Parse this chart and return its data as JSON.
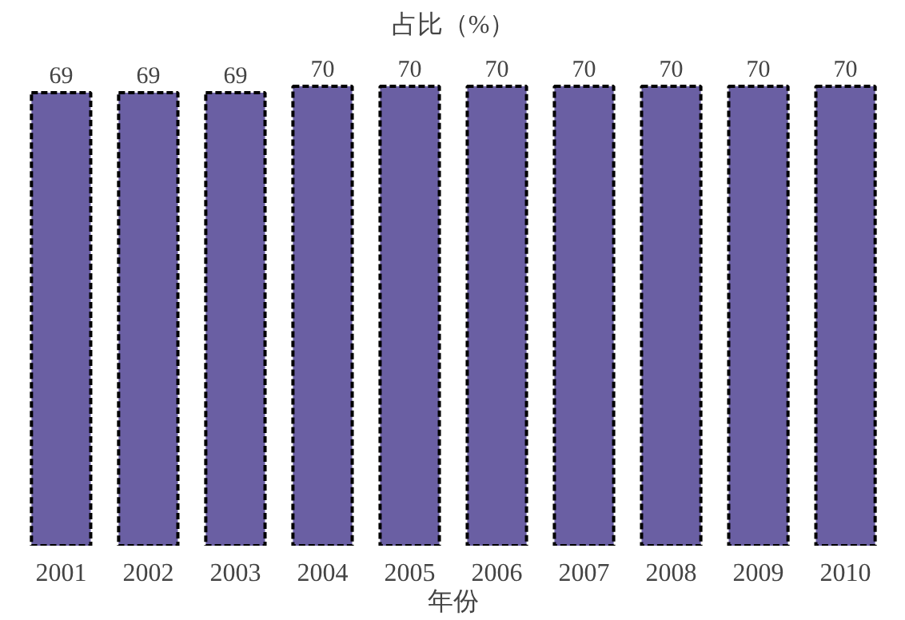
{
  "chart_data": {
    "type": "bar",
    "title": "占比（%）",
    "xlabel": "年份",
    "categories": [
      "2001",
      "2002",
      "2003",
      "2004",
      "2005",
      "2006",
      "2007",
      "2008",
      "2009",
      "2010"
    ],
    "values": [
      69,
      69,
      69,
      70,
      70,
      70,
      70,
      70,
      70,
      70
    ],
    "color": "#6a5fa3",
    "line_style": "dashed",
    "data_labels": true
  }
}
